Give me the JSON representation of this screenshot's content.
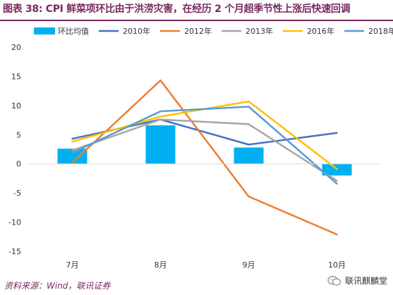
{
  "title": "图表 38: CPI 鲜菜项环比由于洪涝灾害，在经历 2 个月超季节性上涨后快速回调",
  "source": "资料来源：Wind，联讯证券",
  "watermark": "联讯麒麟堂",
  "chart_data": {
    "type": "bar+line",
    "categories": [
      "7月",
      "8月",
      "9月",
      "10月"
    ],
    "ylim": [
      -15,
      20
    ],
    "yticks": [
      20,
      15,
      10,
      5,
      0,
      -5,
      -10,
      -15
    ],
    "grid": false,
    "legend_position": "top",
    "bar_series": {
      "name": "环比均值",
      "color": "#00b0f0",
      "values": [
        2.6,
        6.6,
        2.8,
        -2.0
      ]
    },
    "series": [
      {
        "name": "2010年",
        "color": "#4472c4",
        "values": [
          4.3,
          7.6,
          3.3,
          5.3
        ]
      },
      {
        "name": "2012年",
        "color": "#ed7d31",
        "values": [
          0.2,
          14.3,
          -5.6,
          -12.1
        ]
      },
      {
        "name": "2013年",
        "color": "#a5a5a5",
        "values": [
          2.3,
          7.6,
          6.8,
          -2.9
        ]
      },
      {
        "name": "2016年",
        "color": "#ffc000",
        "values": [
          3.8,
          8.1,
          10.7,
          -0.9
        ]
      },
      {
        "name": "2018年",
        "color": "#5b9bd5",
        "values": [
          1.9,
          9.0,
          9.8,
          -3.4
        ]
      }
    ]
  }
}
